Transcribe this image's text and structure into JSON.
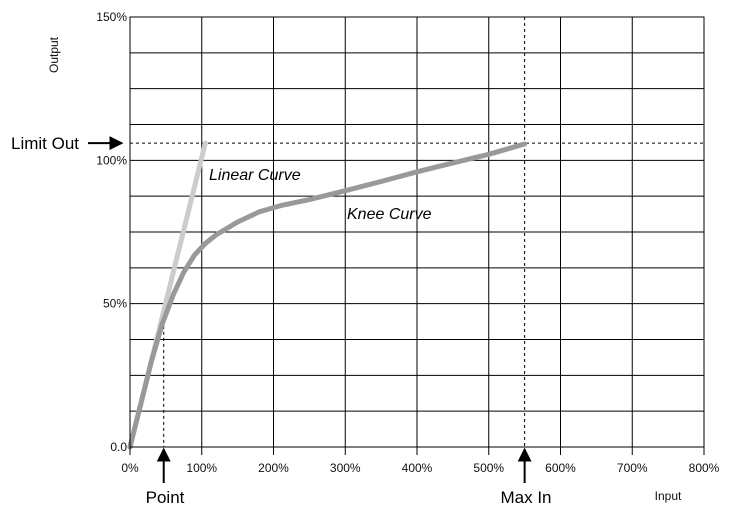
{
  "chart_data": {
    "type": "line",
    "xlabel": "Input",
    "ylabel": "Output",
    "xlim": [
      0,
      800
    ],
    "ylim": [
      0,
      150
    ],
    "x_ticks": [
      "0%",
      "100%",
      "200%",
      "300%",
      "400%",
      "500%",
      "600%",
      "700%",
      "800%"
    ],
    "y_ticks": [
      {
        "value": 0,
        "label": "0.0"
      },
      {
        "value": 50,
        "label": "50%"
      },
      {
        "value": 100,
        "label": "100%"
      },
      {
        "value": 150,
        "label": "150%"
      }
    ],
    "grid": true,
    "x_grid_step": 100,
    "y_grid_step": 12.5,
    "series": [
      {
        "name": "Linear Curve",
        "color": "#cccccc",
        "x": [
          0,
          105
        ],
        "y": [
          0,
          106
        ]
      },
      {
        "name": "Knee Curve",
        "color": "#999999",
        "x": [
          0,
          15,
          30,
          45,
          60,
          75,
          90,
          105,
          120,
          150,
          180,
          210,
          250,
          300,
          350,
          400,
          450,
          500,
          550
        ],
        "y": [
          0,
          15,
          30,
          43,
          53,
          61,
          67,
          71,
          74,
          78.5,
          82,
          84.2,
          86.3,
          89.4,
          92.6,
          96,
          99.1,
          102.1,
          105.7
        ]
      }
    ],
    "annotations": {
      "limit_out": {
        "label": "Limit Out",
        "value": 106
      },
      "max_in": {
        "label": "Max In",
        "value": 550
      },
      "point": {
        "label": "Point",
        "value": 47
      }
    }
  }
}
